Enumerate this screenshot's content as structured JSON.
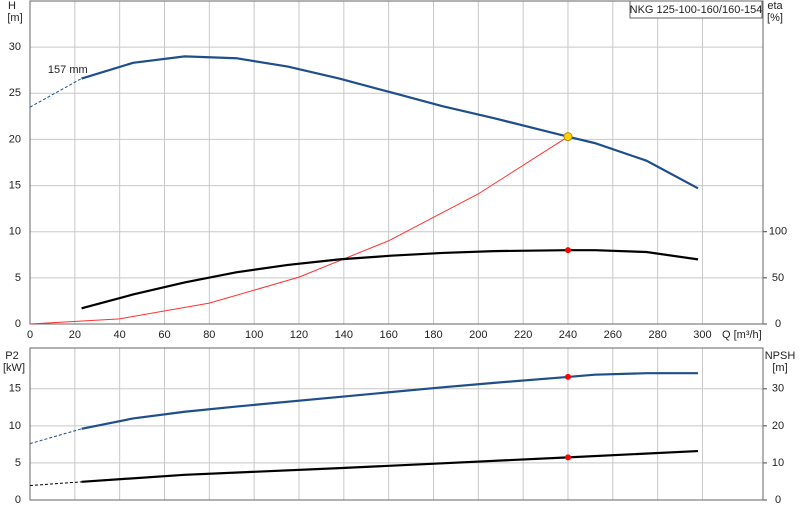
{
  "chart_data": [
    {
      "type": "line",
      "legend_text": "NKG 125-100-160/160-154",
      "y_label": [
        "H",
        "[m]"
      ],
      "y2_label": [
        "eta",
        "[%]"
      ],
      "x_label": "Q [m³/h]",
      "xlim": [
        0,
        327
      ],
      "ylim": [
        0,
        35
      ],
      "y2lim": [
        0,
        350
      ],
      "xticks": [
        0,
        20,
        40,
        60,
        80,
        100,
        120,
        140,
        160,
        180,
        200,
        220,
        240,
        260,
        280,
        300
      ],
      "yticks": [
        0,
        5,
        10,
        15,
        20,
        25,
        30
      ],
      "y2ticks": [
        0,
        50,
        100
      ],
      "grid": true,
      "xtick_labels": true,
      "annotations": [
        {
          "text": "157 mm",
          "x": 8,
          "y": 27.5
        }
      ],
      "series": [
        {
          "color": "#1f4e8c",
          "dash": true,
          "x": [
            0,
            23
          ],
          "values": [
            23.5,
            26.6
          ]
        },
        {
          "color": "#1f4e8c",
          "x": [
            23,
            46,
            69,
            92,
            115,
            138,
            161,
            184,
            207,
            240,
            252,
            275,
            298
          ],
          "values": [
            26.6,
            28.3,
            29.0,
            28.8,
            27.9,
            26.6,
            25.1,
            23.6,
            22.3,
            20.3,
            19.6,
            17.7,
            14.7
          ]
        },
        {
          "color": "#ff3030",
          "thin": true,
          "x": [
            0,
            40,
            80,
            120,
            160,
            200,
            240
          ],
          "values": [
            0,
            0.56,
            2.26,
            5.08,
            9.02,
            14.1,
            20.3
          ]
        },
        {
          "color": "#000000",
          "axis": "y2",
          "x": [
            23,
            46,
            69,
            92,
            115,
            138,
            161,
            184,
            207,
            240,
            252,
            275,
            298
          ],
          "values": [
            17,
            32,
            45,
            56,
            64,
            70,
            74,
            77,
            79,
            80,
            80,
            78,
            70
          ]
        }
      ],
      "duty_points": [
        {
          "x": 240,
          "y": 20.3,
          "color": "#ffd700"
        },
        {
          "x": 240,
          "y": 80,
          "axis": "y2",
          "color": "#ff0000"
        }
      ]
    },
    {
      "type": "line",
      "y_label": [
        "P2",
        "[kW]"
      ],
      "y2_label": [
        "NPSH",
        "[m]"
      ],
      "xlim": [
        0,
        327
      ],
      "ylim": [
        0,
        20.5
      ],
      "y2lim": [
        0,
        41
      ],
      "xticks": [
        0,
        20,
        40,
        60,
        80,
        100,
        120,
        140,
        160,
        180,
        200,
        220,
        240,
        260,
        280,
        300
      ],
      "yticks": [
        0,
        5,
        10,
        15
      ],
      "y2ticks": [
        0,
        10,
        20,
        30
      ],
      "grid": true,
      "xtick_labels": false,
      "series": [
        {
          "color": "#1f4e8c",
          "dash": true,
          "x": [
            0,
            23
          ],
          "values": [
            7.6,
            9.6
          ]
        },
        {
          "color": "#1f4e8c",
          "x": [
            23,
            46,
            69,
            92,
            138,
            184,
            207,
            240,
            252,
            275,
            298
          ],
          "values": [
            9.6,
            11,
            11.9,
            12.6,
            13.9,
            15.2,
            15.8,
            16.6,
            16.9,
            17.1,
            17.1
          ]
        },
        {
          "color": "#000000",
          "dash": true,
          "axis": "y2",
          "x": [
            0,
            23
          ],
          "values": [
            3.9,
            4.9
          ]
        },
        {
          "color": "#000000",
          "axis": "y2",
          "x": [
            23,
            69,
            138,
            184,
            240,
            298
          ],
          "values": [
            4.9,
            6.8,
            8.6,
            9.9,
            11.5,
            13.2
          ]
        }
      ],
      "duty_points": [
        {
          "x": 240,
          "y": 16.6,
          "color": "#ff0000"
        },
        {
          "x": 240,
          "y": 11.5,
          "axis": "y2",
          "color": "#ff0000"
        }
      ]
    }
  ]
}
